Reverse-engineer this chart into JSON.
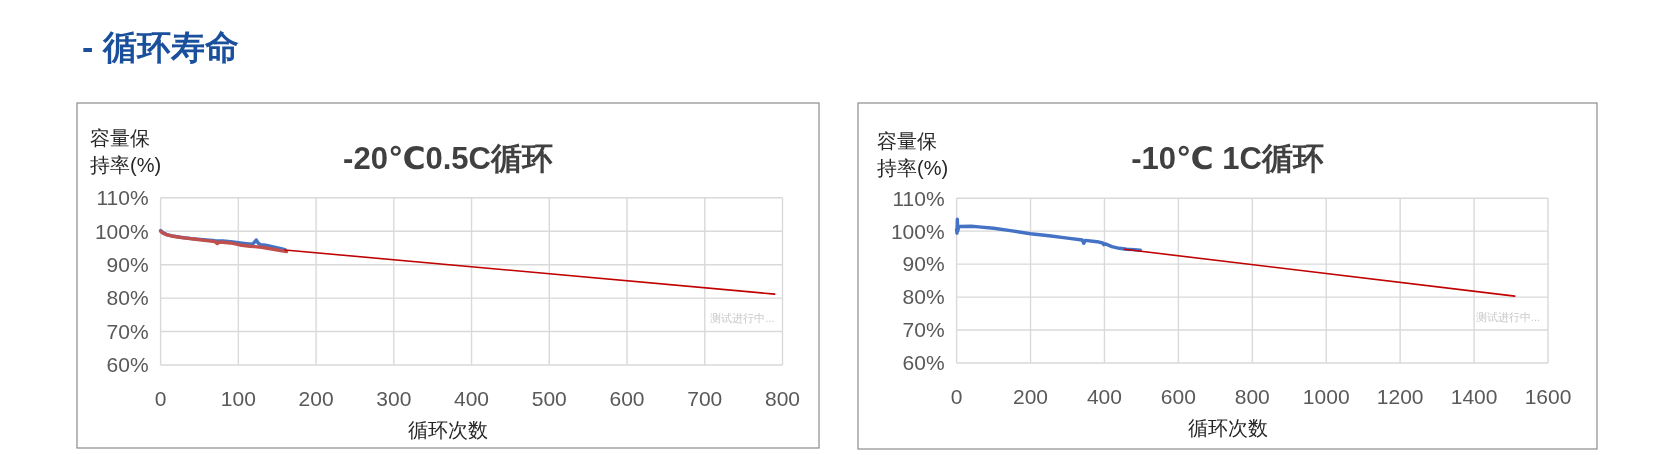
{
  "chart_data": [
    {
      "type": "other",
      "title": "- 循环寿命"
    },
    {
      "type": "line",
      "title": "-20℃0.5C循环",
      "xlabel": "循环次数",
      "ylabel": "容量保持率(%)",
      "annotations": [
        "测试进行中..."
      ],
      "xlim": [
        0,
        800
      ],
      "xticks": [
        0,
        100,
        200,
        300,
        400,
        500,
        600,
        700,
        800
      ],
      "ylim": [
        60,
        110
      ],
      "yticks": [
        {
          "value": 60,
          "label": "60%"
        },
        {
          "value": 70,
          "label": "70%"
        },
        {
          "value": 80,
          "label": "80%"
        },
        {
          "value": 90,
          "label": "90%"
        },
        {
          "value": 100,
          "label": "100%"
        },
        {
          "value": 110,
          "label": "110%"
        }
      ],
      "grid": true,
      "series": [
        {
          "color": "#4472c4",
          "x": [
            0,
            3,
            8,
            15,
            25,
            40,
            55,
            70,
            80,
            90,
            100,
            110,
            118,
            121,
            123,
            125,
            128,
            135,
            145,
            155,
            160
          ],
          "values": [
            100.2,
            99.6,
            99.0,
            98.6,
            98.2,
            97.8,
            97.5,
            97.2,
            97.1,
            96.9,
            96.6,
            96.3,
            96.1,
            96.8,
            97.4,
            96.6,
            96.0,
            95.8,
            95.3,
            94.8,
            94.5
          ]
        },
        {
          "color": "#c0504d",
          "x": [
            0,
            3,
            8,
            16,
            30,
            45,
            59,
            70,
            73,
            76,
            90,
            102,
            115,
            121,
            130,
            145,
            162
          ],
          "values": [
            100.0,
            99.4,
            98.9,
            98.5,
            98.0,
            97.6,
            97.2,
            96.9,
            96.3,
            96.8,
            96.5,
            95.9,
            95.5,
            95.4,
            95.2,
            94.6,
            93.9
          ]
        },
        {
          "type": "line",
          "color": "#c00000",
          "x": [
            160,
            790
          ],
          "values": [
            94.4,
            81.2
          ]
        }
      ]
    },
    {
      "type": "line",
      "title": "-10℃ 1C循环",
      "xlabel": "循环次数",
      "ylabel": "容量保持率(%)",
      "annotations": [
        "测试进行中..."
      ],
      "xlim": [
        0,
        1600
      ],
      "xticks": [
        0,
        200,
        400,
        600,
        800,
        1000,
        1200,
        1400,
        1600
      ],
      "ylim": [
        60,
        110
      ],
      "yticks": [
        {
          "value": 60,
          "label": "60%"
        },
        {
          "value": 70,
          "label": "70%"
        },
        {
          "value": 80,
          "label": "80%"
        },
        {
          "value": 90,
          "label": "90%"
        },
        {
          "value": 100,
          "label": "100%"
        },
        {
          "value": 110,
          "label": "110%"
        }
      ],
      "grid": true,
      "series": [
        {
          "color": "#4472c4",
          "x": [
            0,
            1,
            2,
            3,
            5,
            8,
            40,
            60,
            100,
            150,
            200,
            250,
            300,
            340,
            344,
            348,
            380,
            395,
            398,
            402,
            420,
            440,
            460,
            480,
            497
          ],
          "values": [
            100.5,
            99.4,
            103.6,
            100.0,
            101.0,
            101.4,
            101.5,
            101.3,
            100.9,
            100.1,
            99.2,
            98.6,
            97.9,
            97.3,
            96.3,
            97.2,
            96.8,
            96.4,
            95.9,
            96.2,
            95.3,
            94.8,
            94.5,
            94.4,
            94.2
          ]
        },
        {
          "type": "line",
          "color": "#c00000",
          "x": [
            454,
            1510
          ],
          "values": [
            94.5,
            80.3
          ]
        }
      ]
    }
  ]
}
